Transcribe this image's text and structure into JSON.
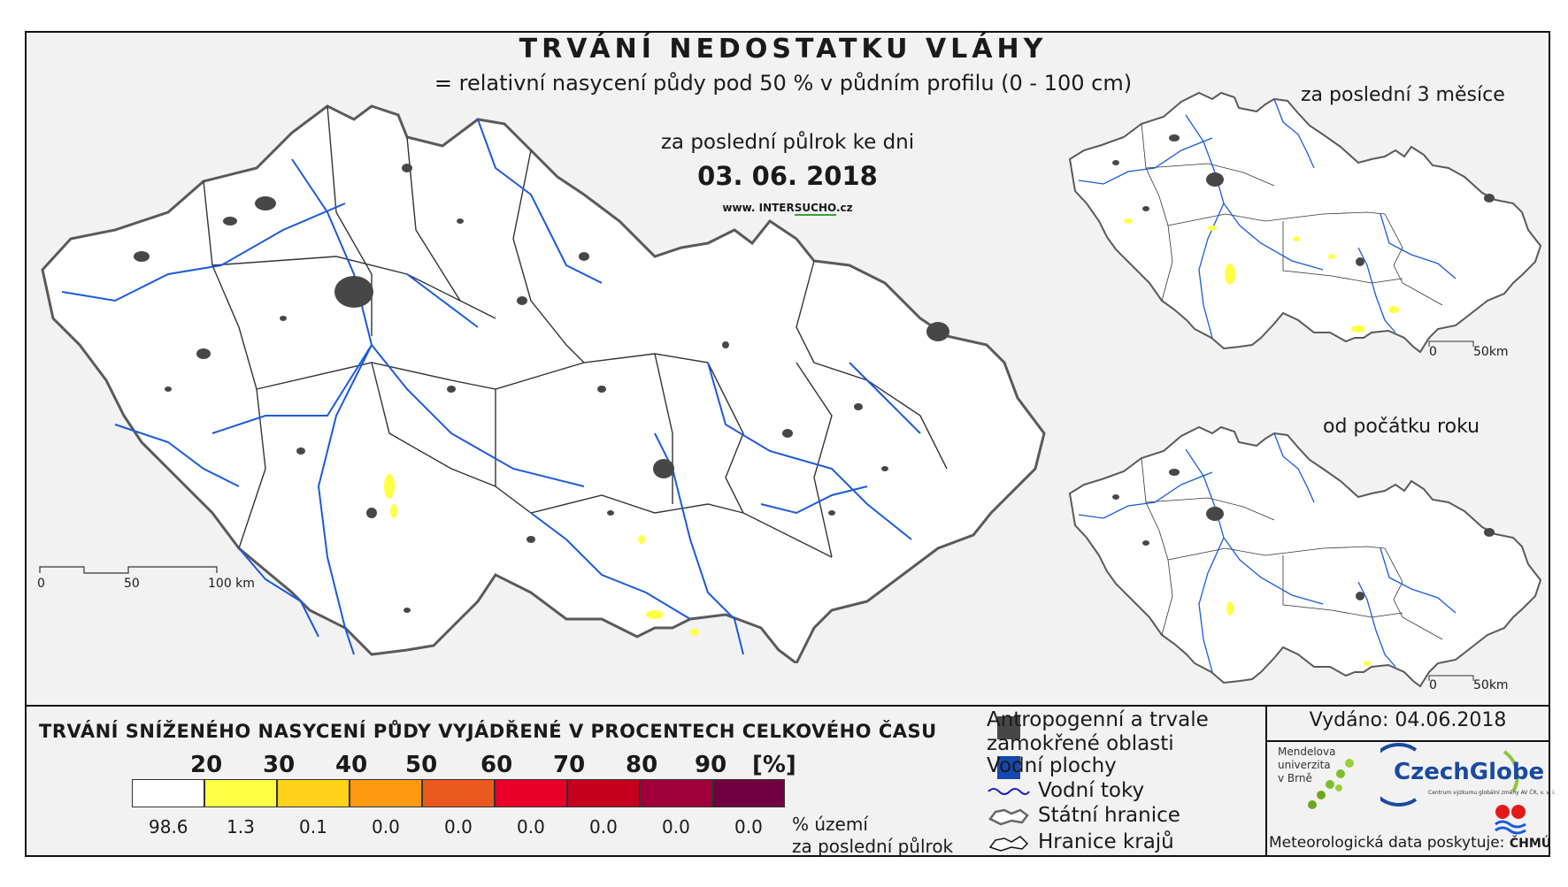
{
  "title": "TRVÁNÍ NEDOSTATKU VLÁHY",
  "subtitle": "= relativní nasycení půdy pod 50 % v půdním profilu (0 - 100 cm)",
  "main_map": {
    "period_label": "za poslední půlrok ke dni",
    "date": "03. 06. 2018",
    "website_prefix": "www. INTER",
    "website_brand": "SUCHO",
    "website_suffix": ".cz",
    "scale_labels": [
      "0",
      "50",
      "100 km"
    ]
  },
  "inset_3m": {
    "label": "za poslední 3 měsíce",
    "scale_labels": [
      "0",
      "50km"
    ]
  },
  "inset_year": {
    "label": "od počátku roku",
    "scale_labels": [
      "0",
      "50km"
    ]
  },
  "legend": {
    "title": "TRVÁNÍ SNÍŽENÉHO NASYCENÍ PŮDY VYJÁDŘENÉ V PROCENTECH CELKOVÉHO ČASU",
    "ticks": [
      "20",
      "30",
      "40",
      "50",
      "60",
      "70",
      "80",
      "90",
      "[%]"
    ],
    "classes": [
      {
        "color": "#ffffff",
        "share": "98.6"
      },
      {
        "color": "#ffff44",
        "share": "1.3"
      },
      {
        "color": "#ffd21a",
        "share": "0.1"
      },
      {
        "color": "#ff9a10",
        "share": "0.0"
      },
      {
        "color": "#ea5a1e",
        "share": "0.0"
      },
      {
        "color": "#e8002a",
        "share": "0.0"
      },
      {
        "color": "#c4001e",
        "share": "0.0"
      },
      {
        "color": "#a0003a",
        "share": "0.0"
      },
      {
        "color": "#700040",
        "share": "0.0"
      }
    ],
    "note_line1": "% území",
    "note_line2": "za poslední půlrok"
  },
  "key": {
    "anthropogenic_line1": "Antropogenní a trvale",
    "anthropogenic_line2": "zamokřené oblasti",
    "water_bodies": "Vodní plochy",
    "rivers": "Vodní toky",
    "state_border": "Státní hranice",
    "region_border": "Hranice krajů"
  },
  "publisher": {
    "issued": "Vydáno: 04.06.2018",
    "mendel_line1": "Mendelova",
    "mendel_line2": "univerzita",
    "mendel_line3": "v Brně",
    "czechglobe": "CzechGlobe",
    "czechglobe_sub": "Centrum výzkumu globální změny AV ČR, v. v. i.",
    "data_by": "Meteorologická data poskytuje:",
    "chmu": "ČHMÚ"
  },
  "colors": {
    "urban": "#474747",
    "water": "#1a5adc",
    "border": "#555555"
  }
}
